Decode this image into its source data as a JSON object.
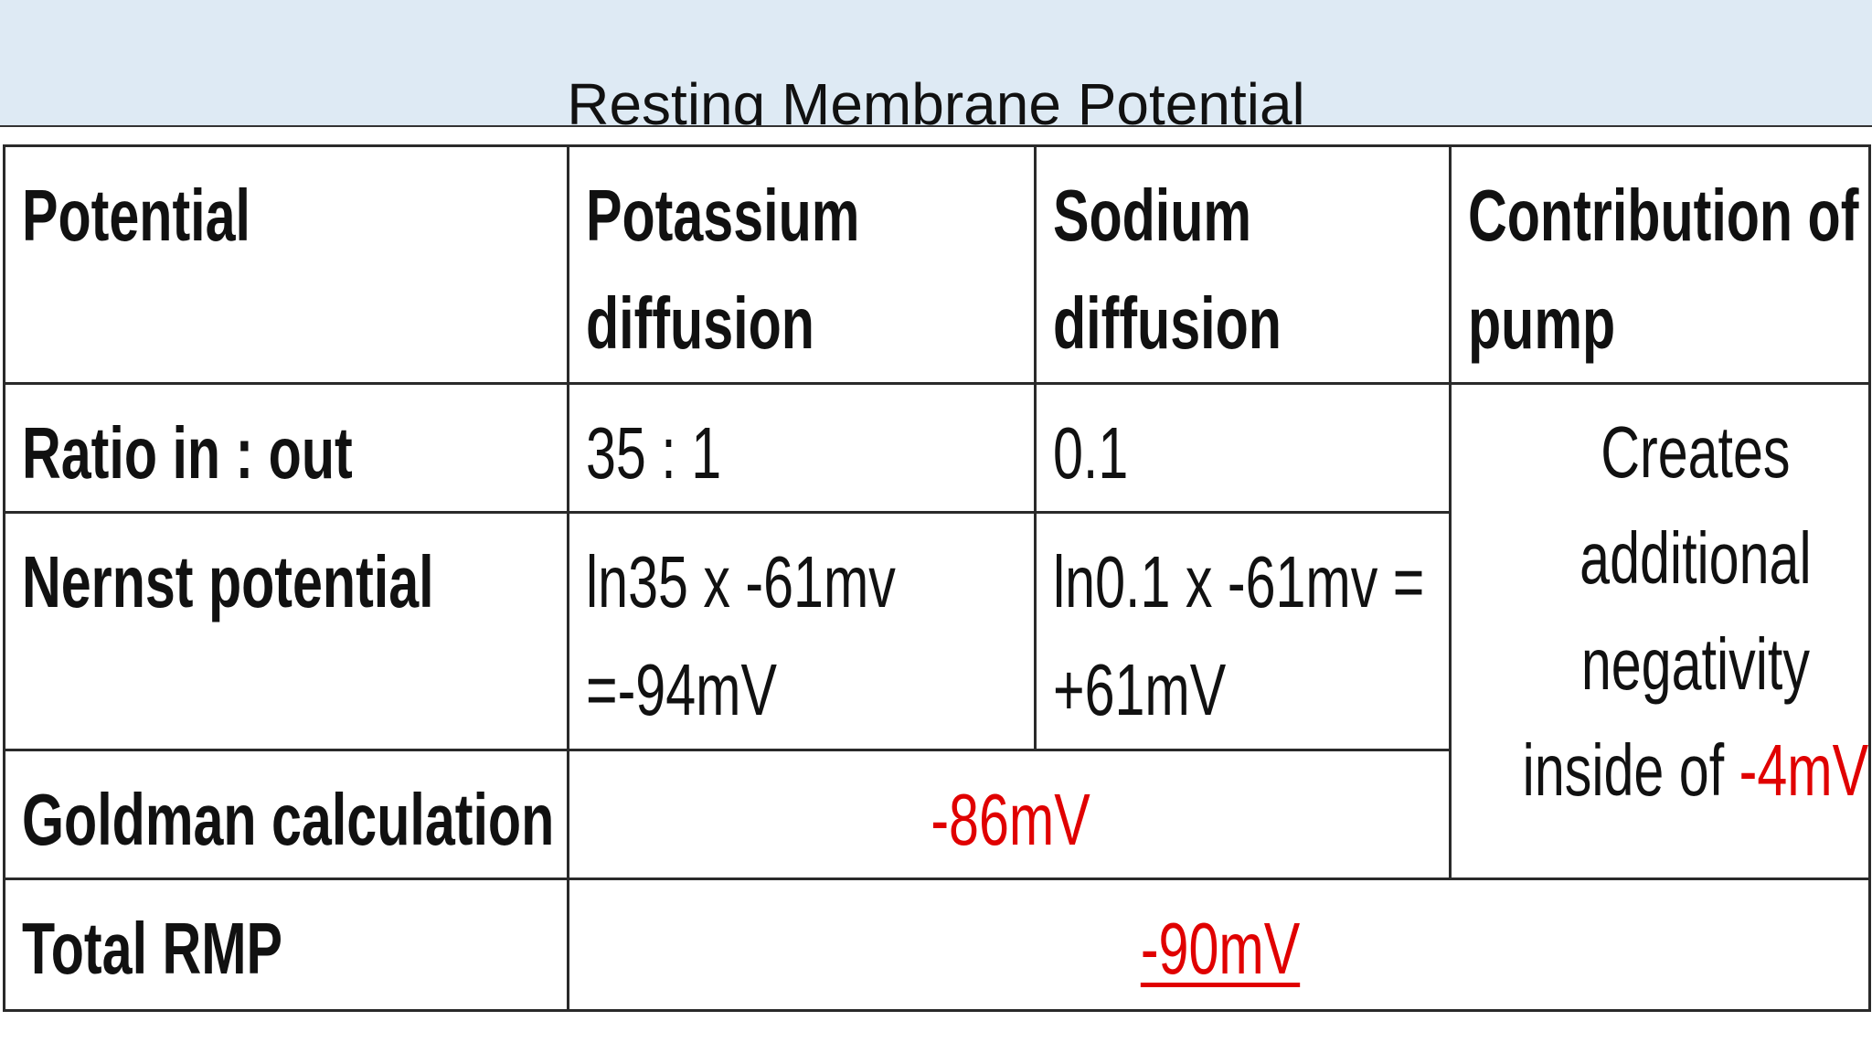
{
  "title": "Resting Membrane Potential",
  "table": {
    "header": [
      "Potential",
      "Potassium diffusion",
      "Sodium diffusion",
      "Contribution of pump"
    ],
    "rows": [
      [
        "Ratio in : out",
        "35 : 1",
        "0.1"
      ],
      [
        "Nernst potential",
        "ln35 x -61mv =-94mV",
        "ln0.1 x -61mv = +61mV"
      ],
      [
        "Goldman calculation",
        "-86mV"
      ],
      [
        "Total RMP",
        "-90mV"
      ]
    ],
    "pump_note": {
      "text": "Creates additional negativity inside of",
      "value": "-4mV"
    }
  }
}
